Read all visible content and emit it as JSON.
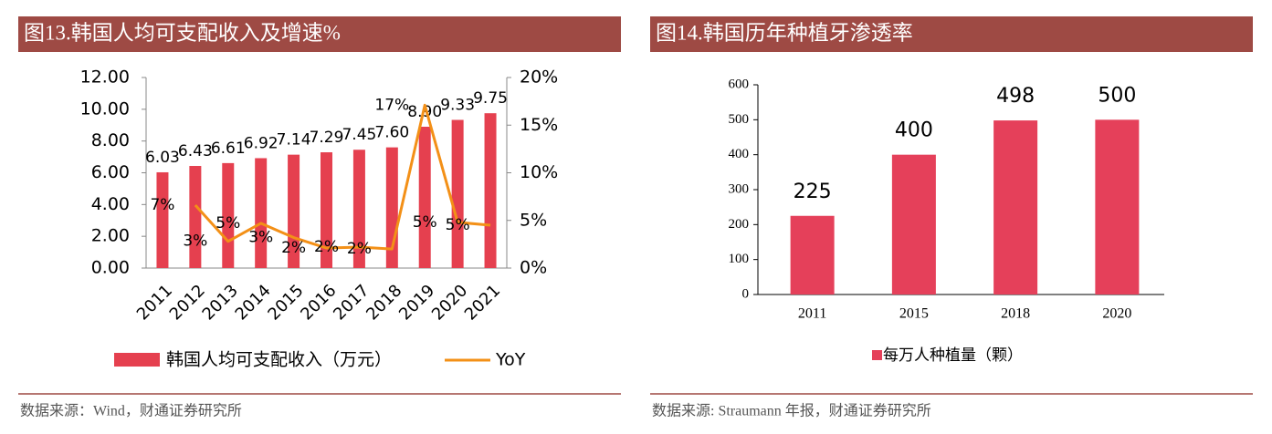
{
  "chart_data": [
    {
      "type": "bar_line",
      "title": "图13.韩国人均可支配收入及增速%",
      "source": "数据来源：Wind，财通证券研究所",
      "categories": [
        "2011",
        "2012",
        "2013",
        "2014",
        "2015",
        "2016",
        "2017",
        "2018",
        "2019",
        "2020",
        "2021"
      ],
      "series": [
        {
          "name": "韩国人均可支配收入（万元）",
          "color": "#e5404f",
          "values": [
            6.03,
            6.43,
            6.61,
            6.92,
            7.14,
            7.29,
            7.45,
            7.6,
            8.9,
            9.33,
            9.75
          ],
          "value_labels": [
            "6.03",
            "6.43",
            "6.61",
            "6.92",
            "7.14",
            "7.29",
            "7.45",
            "7.60",
            "8.90",
            "9.33",
            "9.75"
          ]
        },
        {
          "name": "YoY",
          "color": "#f39017",
          "axis": "y2",
          "values": [
            null,
            6.6,
            2.8,
            4.7,
            3.2,
            2.1,
            2.2,
            2.0,
            17.1,
            4.8,
            4.5
          ],
          "value_labels": [
            null,
            "7%",
            "3%",
            "5%",
            "3%",
            "2%",
            "2%",
            "2%",
            "17%",
            "5%",
            "5%"
          ]
        }
      ],
      "ylim": [
        0,
        12
      ],
      "yticks": [
        {
          "value": 0,
          "label": "0.00"
        },
        {
          "value": 2,
          "label": "2.00"
        },
        {
          "value": 4,
          "label": "4.00"
        },
        {
          "value": 6,
          "label": "6.00"
        },
        {
          "value": 8,
          "label": "8.00"
        },
        {
          "value": 10,
          "label": "10.00"
        },
        {
          "value": 12,
          "label": "12.00"
        }
      ],
      "y2lim": [
        0,
        20
      ],
      "y2ticks": [
        {
          "value": 0,
          "label": "0%"
        },
        {
          "value": 5,
          "label": "5%"
        },
        {
          "value": 10,
          "label": "10%"
        },
        {
          "value": 15,
          "label": "15%"
        },
        {
          "value": 20,
          "label": "20%"
        }
      ],
      "grid": false
    },
    {
      "type": "bar",
      "title": "图14.韩国历年种植牙渗透率",
      "source": "数据来源: Straumann 年报，财通证券研究所",
      "categories": [
        "2011",
        "2015",
        "2018",
        "2020"
      ],
      "series": [
        {
          "name": "每万人种植量（颗）",
          "color": "#e5405a",
          "values": [
            225,
            400,
            498,
            500
          ]
        }
      ],
      "ylim": [
        0,
        600
      ],
      "yticks": [
        0,
        100,
        200,
        300,
        400,
        500,
        600
      ],
      "grid": false
    }
  ]
}
